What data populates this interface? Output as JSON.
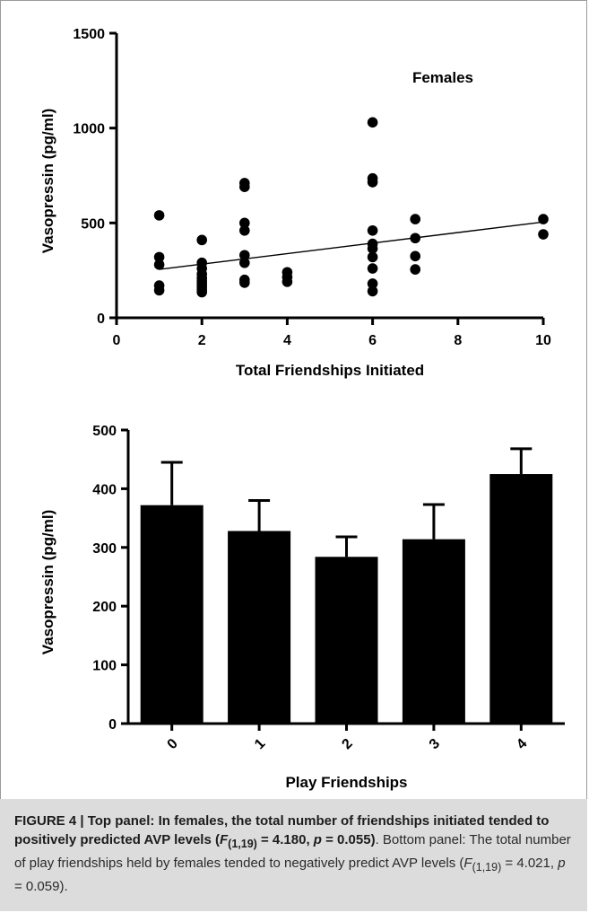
{
  "chart_data": [
    {
      "type": "scatter",
      "xlabel": "Total Friendships Initiated",
      "ylabel": "Vasopressin (pg/ml)",
      "annotation": "Females",
      "xlim": [
        0,
        10
      ],
      "ylim": [
        0,
        1500
      ],
      "xticks": [
        "0",
        "2",
        "4",
        "6",
        "8",
        "10"
      ],
      "yticks": [
        "0",
        "500",
        "1000",
        "1500"
      ],
      "points": [
        {
          "x": 1,
          "y": 540
        },
        {
          "x": 1,
          "y": 320
        },
        {
          "x": 1,
          "y": 280
        },
        {
          "x": 1,
          "y": 170
        },
        {
          "x": 1,
          "y": 145
        },
        {
          "x": 2,
          "y": 410
        },
        {
          "x": 2,
          "y": 290
        },
        {
          "x": 2,
          "y": 260
        },
        {
          "x": 2,
          "y": 230
        },
        {
          "x": 2,
          "y": 210
        },
        {
          "x": 2,
          "y": 195
        },
        {
          "x": 2,
          "y": 180
        },
        {
          "x": 2,
          "y": 165
        },
        {
          "x": 2,
          "y": 150
        },
        {
          "x": 2,
          "y": 135
        },
        {
          "x": 3,
          "y": 710
        },
        {
          "x": 3,
          "y": 690
        },
        {
          "x": 3,
          "y": 500
        },
        {
          "x": 3,
          "y": 460
        },
        {
          "x": 3,
          "y": 330
        },
        {
          "x": 3,
          "y": 290
        },
        {
          "x": 3,
          "y": 200
        },
        {
          "x": 3,
          "y": 185
        },
        {
          "x": 4,
          "y": 240
        },
        {
          "x": 4,
          "y": 215
        },
        {
          "x": 4,
          "y": 190
        },
        {
          "x": 6,
          "y": 1030
        },
        {
          "x": 6,
          "y": 735
        },
        {
          "x": 6,
          "y": 715
        },
        {
          "x": 6,
          "y": 460
        },
        {
          "x": 6,
          "y": 390
        },
        {
          "x": 6,
          "y": 365
        },
        {
          "x": 6,
          "y": 320
        },
        {
          "x": 6,
          "y": 260
        },
        {
          "x": 6,
          "y": 180
        },
        {
          "x": 6,
          "y": 140
        },
        {
          "x": 7,
          "y": 520
        },
        {
          "x": 7,
          "y": 420
        },
        {
          "x": 7,
          "y": 325
        },
        {
          "x": 7,
          "y": 255
        },
        {
          "x": 10,
          "y": 520
        },
        {
          "x": 10,
          "y": 440
        }
      ],
      "trendline": [
        {
          "x": 1,
          "y": 255
        },
        {
          "x": 10,
          "y": 505
        }
      ]
    },
    {
      "type": "bar",
      "xlabel": "Play  Friendships",
      "ylabel": "Vasopressin (pg/ml)",
      "ylim": [
        0,
        500
      ],
      "yticks": [
        "0",
        "100",
        "200",
        "300",
        "400",
        "500"
      ],
      "categories": [
        "0",
        "1",
        "2",
        "3",
        "4"
      ],
      "values": [
        372,
        328,
        284,
        314,
        425
      ],
      "errors": [
        73,
        52,
        34,
        59,
        43
      ],
      "bar_color": "#000000"
    }
  ],
  "caption": {
    "label": "FIGURE 4 | Top panel: In females, the total number of friendships initiated tended to positively predicted AVP levels (",
    "stat1_F": "F",
    "stat1_sub": "(1,19)",
    "stat1_rest": " = 4.180, ",
    "stat1_p": "p",
    "stat1_end": " = 0.055)",
    "body_start": ". Bottom panel: The total number of play friendships held by females tended to negatively predict AVP levels (",
    "stat2_F": "F",
    "stat2_sub": "(1,19)",
    "stat2_rest": " = 4.021, ",
    "stat2_p": "p",
    "stat2_end": " = 0.059)."
  }
}
